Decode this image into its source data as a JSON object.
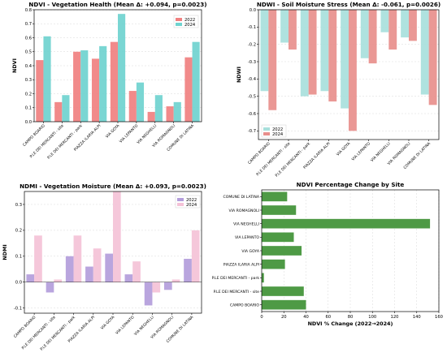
{
  "chart_data": [
    {
      "type": "bar",
      "title": "NDVI - Vegetation Health (Mean Δ: +0.094, p=0.0023)",
      "xlabel": "",
      "ylabel": "NDVI",
      "ylim": [
        0,
        0.8
      ],
      "yticks": [
        0.0,
        0.1,
        0.2,
        0.3,
        0.4,
        0.5,
        0.6,
        0.7,
        0.8
      ],
      "grid": true,
      "legend": "top-right",
      "categories": [
        "CAMPO BOARIO",
        "P.LE DEI MERCANTI - site",
        "P.LE DEI MERCANTI - park",
        "PIAZZA ILARIA ALPI",
        "VIA GOYA",
        "VIA LEPANTO",
        "VIA NEGHELLI",
        "VIA ROMAGNOLI",
        "COMUNE DI LATINA"
      ],
      "series": [
        {
          "name": "2022",
          "color": "#f08080",
          "values": [
            0.44,
            0.14,
            0.5,
            0.45,
            0.57,
            0.22,
            0.07,
            0.11,
            0.46
          ]
        },
        {
          "name": "2024",
          "color": "#6fd3cf",
          "values": [
            0.61,
            0.19,
            0.51,
            0.54,
            0.77,
            0.28,
            0.19,
            0.14,
            0.57
          ]
        }
      ]
    },
    {
      "type": "bar",
      "title": "NDWI - Soil Moisture Stress (Mean Δ: -0.061, p=0.0026)",
      "xlabel": "",
      "ylabel": "NDWI",
      "ylim": [
        -0.75,
        0.0
      ],
      "yticks": [
        0.0,
        -0.1,
        -0.2,
        -0.3,
        -0.4,
        -0.5,
        -0.6,
        -0.7
      ],
      "grid": true,
      "legend": "bottom-left",
      "categories": [
        "CAMPO BOARIO",
        "P.LE DEI MERCANTI - site",
        "P.LE DEI MERCANTI - park",
        "PIAZZA ILARIA ALPI",
        "VIA GOYA",
        "VIA LEPANTO",
        "VIA NEGHELLI",
        "VIA ROMAGNOLI",
        "COMUNE DI LATINA"
      ],
      "series": [
        {
          "name": "2022",
          "color": "#a8e0dc",
          "values": [
            -0.47,
            -0.19,
            -0.5,
            -0.47,
            -0.57,
            -0.28,
            -0.13,
            -0.16,
            -0.49
          ]
        },
        {
          "name": "2024",
          "color": "#e88f8c",
          "values": [
            -0.58,
            -0.23,
            -0.49,
            -0.53,
            -0.7,
            -0.31,
            -0.23,
            -0.18,
            -0.55
          ]
        }
      ]
    },
    {
      "type": "bar",
      "title": "NDMI - Vegetation Moisture (Mean Δ: +0.093, p=0.0023)",
      "xlabel": "",
      "ylabel": "NDMI",
      "ylim": [
        -0.12,
        0.35
      ],
      "yticks": [
        -0.1,
        0.0,
        0.1,
        0.2,
        0.3
      ],
      "grid": true,
      "legend": "top-right",
      "categories": [
        "CAMPO BOARIO",
        "P.LE DEI MERCANTI - site",
        "P.LE DEI MERCANTI - park",
        "PIAZZA ILARIA ALPI",
        "VIA GOYA",
        "VIA LEPANTO",
        "VIA NEGHELLI",
        "VIA ROMAGNOLI",
        "COMUNE DI LATINA"
      ],
      "series": [
        {
          "name": "2022",
          "color": "#b39ddb",
          "values": [
            0.03,
            -0.04,
            0.1,
            0.06,
            0.11,
            0.03,
            -0.09,
            -0.03,
            0.09
          ]
        },
        {
          "name": "2024",
          "color": "#f4c2d7",
          "values": [
            0.18,
            0.01,
            0.18,
            0.13,
            0.35,
            0.08,
            -0.04,
            0.01,
            0.2
          ]
        }
      ]
    },
    {
      "type": "bar",
      "orientation": "horizontal",
      "title": "NDVI Percentage Change by Site",
      "xlabel": "NDVI % Change (2022→2024)",
      "ylabel": "",
      "xlim": [
        0,
        160
      ],
      "xticks": [
        0,
        20,
        40,
        60,
        80,
        100,
        120,
        140,
        160
      ],
      "grid": true,
      "color": "#4e9a45",
      "categories": [
        "COMUNE DI LATINA",
        "VIA ROMAGNOLI",
        "VIA NEGHELLI",
        "VIA LEPANTO",
        "VIA GOYA",
        "PIAZZA ILARIA ALPI",
        "P.LE DEI MERCANTI - park",
        "P.LE DEI MERCANTI - site",
        "CAMPO BOARIO"
      ],
      "values": [
        23,
        31,
        152,
        29,
        36,
        21,
        2,
        38,
        40
      ]
    }
  ]
}
